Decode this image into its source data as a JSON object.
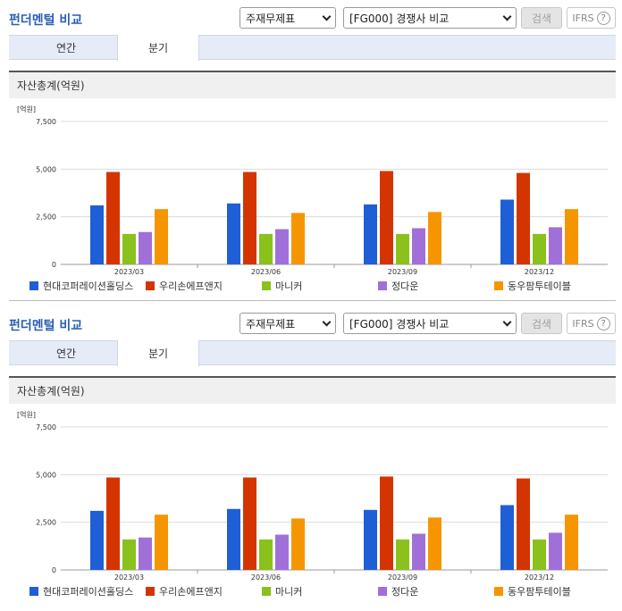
{
  "panels": [
    {
      "title": "펀더멘털 비교",
      "select1": "주재무제표",
      "select2": "[FG000] 경쟁사 비교",
      "search_label": "검색",
      "ifrs_label": "IFRS",
      "tabs": [
        "연간",
        "분기"
      ],
      "active_tab": 1,
      "section_title": "자산총계(억원)",
      "unit_label": "[억원]"
    },
    {
      "title": "펀더멘털 비교",
      "select1": "주재무제표",
      "select2": "[FG000] 경쟁사 비교",
      "search_label": "검색",
      "ifrs_label": "IFRS",
      "tabs": [
        "연간",
        "분기"
      ],
      "active_tab": 1,
      "section_title": "자산총계(억원)",
      "unit_label": "[억원]"
    }
  ],
  "help_icon": "?",
  "chart_data": [
    {
      "type": "bar",
      "title": "자산총계(억원)",
      "ylabel": "[억원]",
      "ylim": [
        0,
        7500
      ],
      "yticks": [
        "0",
        "2,500",
        "5,000",
        "7,500"
      ],
      "ytick_values": [
        0,
        2500,
        5000,
        7500
      ],
      "categories": [
        "2023/03",
        "2023/06",
        "2023/09",
        "2023/12"
      ],
      "series": [
        {
          "name": "현대코퍼레이션홀딩스",
          "color": "#1f5fd6",
          "values": [
            3100,
            3200,
            3150,
            3400
          ]
        },
        {
          "name": "우리손에프앤지",
          "color": "#d43500",
          "values": [
            4850,
            4850,
            4900,
            4800
          ]
        },
        {
          "name": "마니커",
          "color": "#8ac11d",
          "values": [
            1600,
            1600,
            1600,
            1600
          ]
        },
        {
          "name": "정다운",
          "color": "#a070d8",
          "values": [
            1700,
            1850,
            1900,
            1950
          ]
        },
        {
          "name": "동우팜투테이블",
          "color": "#f59600",
          "values": [
            2900,
            2700,
            2750,
            2900
          ]
        }
      ],
      "grid": true,
      "legend": "bottom"
    },
    {
      "type": "bar",
      "title": "자산총계(억원)",
      "ylabel": "[억원]",
      "ylim": [
        0,
        7500
      ],
      "yticks": [
        "0",
        "2,500",
        "5,000",
        "7,500"
      ],
      "ytick_values": [
        0,
        2500,
        5000,
        7500
      ],
      "categories": [
        "2023/03",
        "2023/06",
        "2023/09",
        "2023/12"
      ],
      "series": [
        {
          "name": "현대코퍼레이션홀딩스",
          "color": "#1f5fd6",
          "values": [
            3100,
            3200,
            3150,
            3400
          ]
        },
        {
          "name": "우리손에프앤지",
          "color": "#d43500",
          "values": [
            4850,
            4850,
            4900,
            4800
          ]
        },
        {
          "name": "마니커",
          "color": "#8ac11d",
          "values": [
            1600,
            1600,
            1600,
            1600
          ]
        },
        {
          "name": "정다운",
          "color": "#a070d8",
          "values": [
            1700,
            1850,
            1900,
            1950
          ]
        },
        {
          "name": "동우팜투테이블",
          "color": "#f59600",
          "values": [
            2900,
            2700,
            2750,
            2900
          ]
        }
      ],
      "grid": true,
      "legend": "bottom"
    }
  ]
}
